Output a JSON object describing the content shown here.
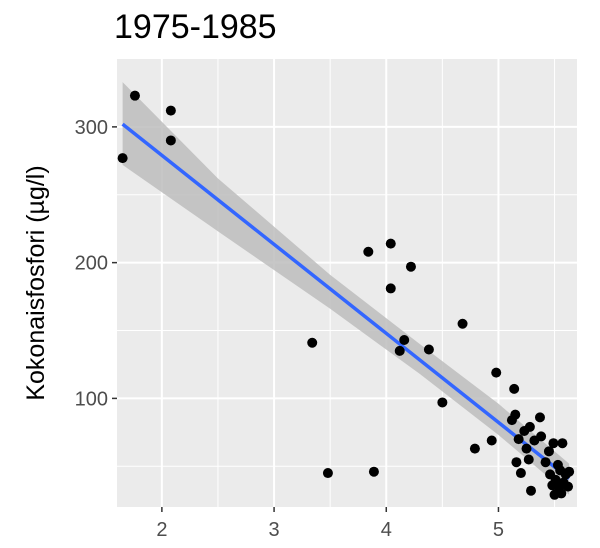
{
  "chart_data": {
    "type": "scatter",
    "title": "1975-1985",
    "xlabel": "",
    "ylabel": "Kokonaisfosfori (µg/l)",
    "xlim": [
      1.6,
      5.7
    ],
    "ylim": [
      20,
      350
    ],
    "x_ticks": [
      2,
      3,
      4,
      5
    ],
    "x_tick_labels": [
      "2",
      "3",
      "4",
      "5"
    ],
    "y_ticks": [
      100,
      200,
      300
    ],
    "y_tick_labels": [
      "100",
      "200",
      "300"
    ],
    "grid": true,
    "colors": {
      "panel_background": "#ebebeb",
      "grid_major": "#ffffff",
      "points": "#000000",
      "fit_line": "#3366ff",
      "confidence_band": "#bdbdbd"
    },
    "points": [
      {
        "x": 1.65,
        "y": 277
      },
      {
        "x": 1.76,
        "y": 323
      },
      {
        "x": 2.08,
        "y": 312
      },
      {
        "x": 2.08,
        "y": 290
      },
      {
        "x": 3.34,
        "y": 141
      },
      {
        "x": 3.48,
        "y": 45
      },
      {
        "x": 3.84,
        "y": 208
      },
      {
        "x": 3.89,
        "y": 46
      },
      {
        "x": 4.04,
        "y": 214
      },
      {
        "x": 4.04,
        "y": 181
      },
      {
        "x": 4.12,
        "y": 135
      },
      {
        "x": 4.16,
        "y": 143
      },
      {
        "x": 4.22,
        "y": 197
      },
      {
        "x": 4.38,
        "y": 136
      },
      {
        "x": 4.5,
        "y": 97
      },
      {
        "x": 4.68,
        "y": 155
      },
      {
        "x": 4.79,
        "y": 63
      },
      {
        "x": 4.94,
        "y": 69
      },
      {
        "x": 4.98,
        "y": 119
      },
      {
        "x": 5.12,
        "y": 84
      },
      {
        "x": 5.14,
        "y": 107
      },
      {
        "x": 5.15,
        "y": 88
      },
      {
        "x": 5.16,
        "y": 53
      },
      {
        "x": 5.18,
        "y": 70
      },
      {
        "x": 5.2,
        "y": 45
      },
      {
        "x": 5.23,
        "y": 76
      },
      {
        "x": 5.25,
        "y": 63
      },
      {
        "x": 5.27,
        "y": 55
      },
      {
        "x": 5.28,
        "y": 79
      },
      {
        "x": 5.29,
        "y": 32
      },
      {
        "x": 5.32,
        "y": 69
      },
      {
        "x": 5.37,
        "y": 86
      },
      {
        "x": 5.38,
        "y": 72
      },
      {
        "x": 5.42,
        "y": 53
      },
      {
        "x": 5.45,
        "y": 61
      },
      {
        "x": 5.46,
        "y": 44
      },
      {
        "x": 5.48,
        "y": 36
      },
      {
        "x": 5.49,
        "y": 67
      },
      {
        "x": 5.5,
        "y": 29
      },
      {
        "x": 5.51,
        "y": 40
      },
      {
        "x": 5.53,
        "y": 51
      },
      {
        "x": 5.54,
        "y": 34
      },
      {
        "x": 5.55,
        "y": 47
      },
      {
        "x": 5.56,
        "y": 30
      },
      {
        "x": 5.57,
        "y": 67
      },
      {
        "x": 5.58,
        "y": 38
      },
      {
        "x": 5.6,
        "y": 44
      },
      {
        "x": 5.62,
        "y": 35
      },
      {
        "x": 5.63,
        "y": 46
      }
    ],
    "fit_line": [
      {
        "x": 1.65,
        "y": 302
      },
      {
        "x": 5.63,
        "y": 41
      }
    ],
    "confidence_band": {
      "x": [
        1.65,
        2.5,
        3.5,
        4.3,
        5.0,
        5.63
      ],
      "upper": [
        333,
        262,
        191,
        140,
        96,
        52
      ],
      "lower": [
        272,
        223,
        166,
        118,
        73,
        29
      ]
    }
  }
}
